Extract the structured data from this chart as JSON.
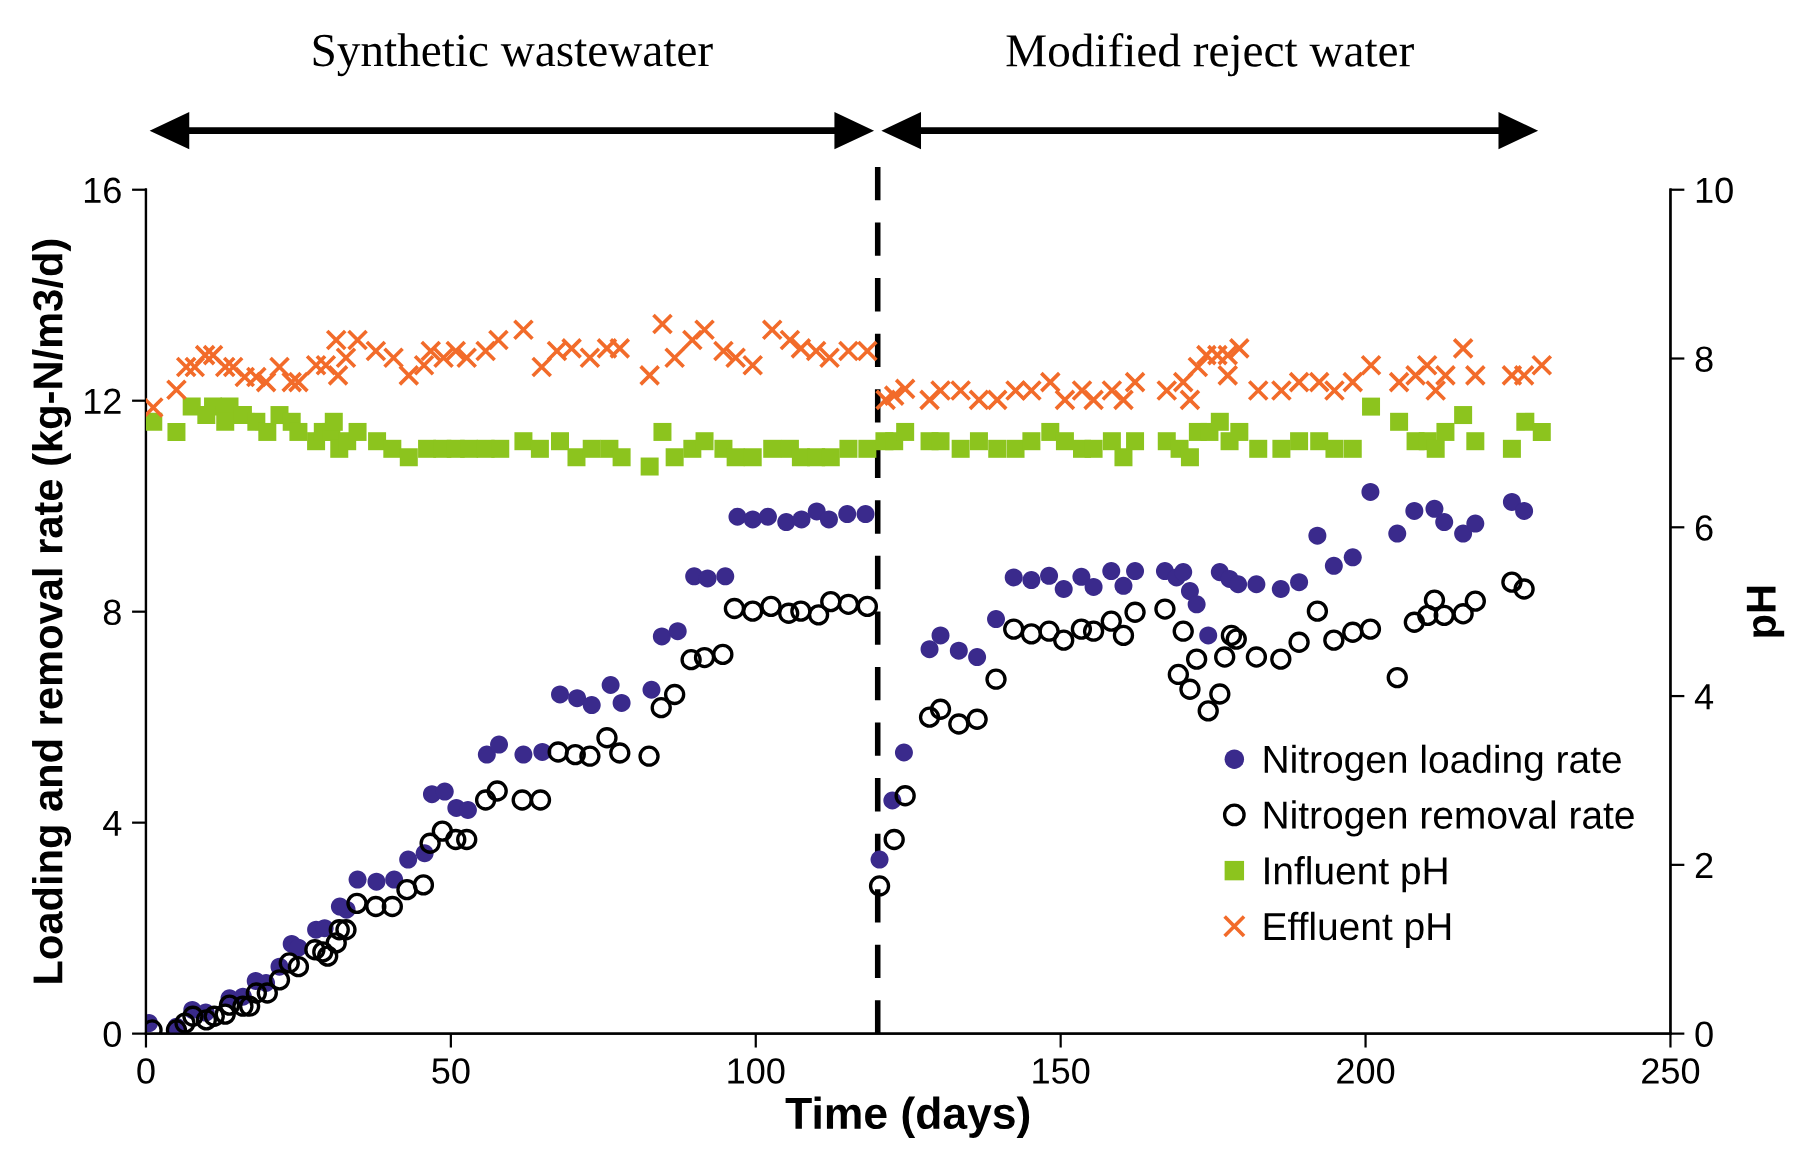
{
  "chart_data": {
    "type": "scatter",
    "xlabel": "Time (days)",
    "ylabel": "Loading and removal rate (kg-N/m3/d)",
    "y2label": "pH",
    "xlim": [
      0,
      250
    ],
    "xticks": [
      0,
      50,
      100,
      150,
      200,
      250
    ],
    "ylim": [
      0,
      16
    ],
    "yticks": [
      0,
      4,
      8,
      12,
      16
    ],
    "y2lim": [
      0,
      10
    ],
    "y2ticks": [
      0,
      2,
      4,
      6,
      8,
      10
    ],
    "grid": false,
    "legend": "bottom right",
    "ref_lines": [
      {
        "axis": "x",
        "value": 120,
        "line_style": "dashed",
        "color": "#000000"
      }
    ],
    "annotations": [
      "Synthetic wastewater",
      "Modified reject water"
    ],
    "series": [
      {
        "name": "Nitrogen loading rate",
        "color": "#3a2a8c",
        "marker": "circle",
        "x": [
          0.5,
          5,
          7.6,
          9.8,
          13.7,
          15.9,
          18,
          19.7,
          21.9,
          23.9,
          25,
          27.9,
          29.3,
          31.8,
          32.9,
          34.7,
          37.8,
          40.7,
          43,
          45.7,
          46.9,
          49,
          50.9,
          52.8,
          55.9,
          57.9,
          61.9,
          65,
          67.9,
          70.7,
          73.1,
          76.2,
          78,
          82.9,
          84.6,
          87.2,
          89.9,
          92.1,
          95,
          97,
          99.5,
          102,
          105,
          107.5,
          110,
          112,
          115,
          118,
          120.3,
          122.4,
          124.3,
          128.5,
          130.3,
          133.3,
          136.3,
          139.4,
          142.3,
          145.2,
          148.1,
          150.5,
          153.4,
          155.4,
          158.3,
          160.3,
          162.2,
          167.1,
          169,
          170.1,
          171.2,
          172.3,
          174.2,
          176.1,
          177.7,
          179.1,
          182.1,
          186.1,
          189.1,
          192.1,
          194.8,
          197.9,
          200.8,
          205.2,
          208,
          211.3,
          212.9,
          216,
          218,
          224,
          226
        ],
        "values": [
          0.2,
          0.13,
          0.45,
          0.4,
          0.67,
          0.7,
          1.0,
          0.96,
          1.27,
          1.7,
          1.63,
          1.97,
          2.0,
          2.41,
          2.35,
          2.92,
          2.88,
          2.92,
          3.3,
          3.42,
          4.54,
          4.59,
          4.28,
          4.24,
          5.29,
          5.48,
          5.29,
          5.34,
          6.43,
          6.36,
          6.23,
          6.61,
          6.27,
          6.52,
          7.53,
          7.63,
          8.67,
          8.63,
          8.67,
          9.8,
          9.75,
          9.8,
          9.7,
          9.75,
          9.9,
          9.75,
          9.85,
          9.85,
          3.3,
          4.42,
          5.33,
          7.29,
          7.55,
          7.26,
          7.14,
          7.86,
          8.65,
          8.6,
          8.68,
          8.43,
          8.66,
          8.47,
          8.77,
          8.49,
          8.77,
          8.77,
          8.65,
          8.75,
          8.39,
          8.14,
          7.55,
          8.75,
          8.62,
          8.52,
          8.52,
          8.43,
          8.56,
          9.44,
          8.87,
          9.03,
          10.27,
          9.48,
          9.91,
          9.95,
          9.7,
          9.48,
          9.67,
          10.08,
          9.91
        ]
      },
      {
        "name": "Nitrogen removal rate",
        "color": "#000000",
        "marker": "open circle",
        "x": [
          1.0,
          5.0,
          6.4,
          7.7,
          9.9,
          11.2,
          13,
          13.7,
          15.9,
          17,
          18.1,
          19.9,
          21.9,
          23.5,
          25,
          27.7,
          29,
          29.8,
          31.2,
          31.7,
          32.8,
          34.6,
          37.7,
          40.4,
          42.8,
          45.5,
          46.6,
          48.6,
          50.8,
          52.6,
          55.7,
          57.6,
          61.7,
          64.7,
          67.6,
          70.4,
          72.8,
          75.6,
          77.7,
          82.5,
          84.5,
          86.7,
          89.4,
          91.6,
          94.6,
          96.5,
          99.5,
          102.5,
          105.4,
          107.4,
          110.3,
          112.3,
          115.2,
          118.3,
          120.3,
          122.7,
          124.5,
          128.5,
          130.3,
          133.3,
          136.3,
          139.4,
          142.3,
          145.2,
          148.1,
          150.5,
          153.4,
          155.4,
          158.3,
          160.3,
          162.2,
          167.1,
          169.3,
          170.1,
          171.2,
          172.3,
          174.2,
          176.1,
          176.9,
          178,
          178.8,
          182.1,
          186.1,
          189.1,
          192.1,
          194.8,
          197.9,
          200.8,
          205.2,
          208,
          210.2,
          211.3,
          212.9,
          216,
          218,
          224,
          226
        ],
        "values": [
          0.07,
          0.07,
          0.2,
          0.33,
          0.26,
          0.33,
          0.37,
          0.54,
          0.52,
          0.52,
          0.77,
          0.77,
          1.02,
          1.34,
          1.27,
          1.59,
          1.55,
          1.47,
          1.72,
          1.97,
          1.97,
          2.47,
          2.41,
          2.41,
          2.73,
          2.82,
          3.61,
          3.84,
          3.68,
          3.68,
          4.43,
          4.6,
          4.43,
          4.43,
          5.34,
          5.29,
          5.26,
          5.61,
          5.32,
          5.26,
          6.18,
          6.43,
          7.09,
          7.13,
          7.19,
          8.06,
          8.01,
          8.1,
          7.97,
          8.01,
          7.94,
          8.19,
          8.14,
          8.1,
          2.8,
          3.68,
          4.51,
          6.0,
          6.15,
          5.87,
          5.96,
          6.72,
          7.67,
          7.58,
          7.63,
          7.46,
          7.67,
          7.63,
          7.82,
          7.55,
          7.99,
          8.05,
          6.81,
          7.63,
          6.53,
          7.1,
          6.12,
          6.44,
          7.14,
          7.55,
          7.48,
          7.14,
          7.1,
          7.42,
          8.01,
          7.46,
          7.61,
          7.67,
          6.75,
          7.8,
          7.93,
          8.22,
          7.93,
          7.96,
          8.2,
          8.56,
          8.43
        ]
      },
      {
        "name": "Influent pH",
        "color": "#8cc41e",
        "marker": "square",
        "axis": "y2",
        "x": [
          1.2,
          5,
          7.5,
          11,
          13.7,
          9.9,
          13,
          15.9,
          18.1,
          19.9,
          21.9,
          23.9,
          25,
          27.9,
          29,
          30.4,
          30.8,
          31.7,
          33,
          34.7,
          37.9,
          40.4,
          43.1,
          46.1,
          48.6,
          50.8,
          53,
          55.7,
          58.1,
          61.9,
          64.6,
          67.9,
          70.6,
          73.1,
          76,
          78,
          82.6,
          84.7,
          86.7,
          89.6,
          91.6,
          94.7,
          96.7,
          99.5,
          102.7,
          105.6,
          107.4,
          109.9,
          112.3,
          115.2,
          118.3,
          121.1,
          122.7,
          124.5,
          128.5,
          130.3,
          133.6,
          136.6,
          139.6,
          142.6,
          145.2,
          148.3,
          150.7,
          153.5,
          155.4,
          158.4,
          160.3,
          162.2,
          167.4,
          169.5,
          171.2,
          172.5,
          174.4,
          176.1,
          177.7,
          179.3,
          182.4,
          186.2,
          189.1,
          192.4,
          194.9,
          197.9,
          200.9,
          205.5,
          208.2,
          210.2,
          211.5,
          213.1,
          216,
          218,
          224,
          226.2,
          228.9
        ],
        "values": [
          7.25,
          7.13,
          7.43,
          7.43,
          7.43,
          7.33,
          7.25,
          7.33,
          7.25,
          7.13,
          7.33,
          7.25,
          7.13,
          7.02,
          7.13,
          7.13,
          7.25,
          6.93,
          7.02,
          7.13,
          7.02,
          6.93,
          6.83,
          6.93,
          6.93,
          6.93,
          6.93,
          6.93,
          6.93,
          7.02,
          6.93,
          7.02,
          6.83,
          6.93,
          6.93,
          6.83,
          6.72,
          7.13,
          6.83,
          6.93,
          7.02,
          6.93,
          6.83,
          6.83,
          6.93,
          6.93,
          6.83,
          6.83,
          6.83,
          6.93,
          6.93,
          7.02,
          7.02,
          7.13,
          7.02,
          7.02,
          6.93,
          7.02,
          6.93,
          6.93,
          7.02,
          7.13,
          7.02,
          6.93,
          6.93,
          7.02,
          6.83,
          7.02,
          7.02,
          6.93,
          6.83,
          7.13,
          7.13,
          7.25,
          7.02,
          7.13,
          6.93,
          6.93,
          7.02,
          7.02,
          6.93,
          6.93,
          7.43,
          7.25,
          7.02,
          7.02,
          6.93,
          7.13,
          7.33,
          7.02,
          6.93,
          7.25,
          7.13
        ]
      },
      {
        "name": "Effluent pH",
        "color": "#f26b2a",
        "marker": "cross",
        "axis": "y2",
        "x": [
          1.2,
          5.0,
          6.6,
          8.0,
          9.7,
          11,
          13,
          14.3,
          16.2,
          18.1,
          19.7,
          21.9,
          23.9,
          25,
          27.9,
          29.5,
          31.2,
          31.5,
          32.8,
          34.7,
          37.7,
          40.6,
          43.1,
          45.6,
          46.7,
          48.8,
          50.8,
          52.6,
          55.7,
          57.8,
          61.9,
          64.9,
          67.4,
          69.8,
          72.8,
          75.6,
          77.7,
          82.6,
          84.7,
          86.7,
          89.6,
          91.6,
          94.7,
          96.7,
          99.5,
          102.7,
          105.6,
          107.4,
          109.9,
          112.1,
          115.2,
          118.3,
          121.3,
          122.7,
          124.5,
          128.5,
          130.3,
          133.6,
          136.6,
          139.6,
          142.6,
          145.2,
          148.3,
          150.7,
          153.5,
          155.4,
          158.4,
          160.3,
          162.2,
          167.4,
          170.1,
          171.2,
          172.5,
          173.9,
          175.7,
          177.4,
          177.4,
          179.3,
          182.4,
          186.2,
          189.1,
          192.4,
          194.9,
          197.9,
          200.9,
          205.5,
          208.2,
          210.1,
          211.5,
          213.1,
          216,
          218,
          224,
          226,
          228.9
        ],
        "values": [
          7.42,
          7.63,
          7.9,
          7.9,
          8.04,
          8.04,
          7.9,
          7.9,
          7.78,
          7.78,
          7.72,
          7.9,
          7.72,
          7.72,
          7.92,
          7.92,
          8.22,
          7.8,
          8.01,
          8.22,
          8.09,
          8.01,
          7.8,
          7.92,
          8.09,
          8.01,
          8.09,
          8.01,
          8.09,
          8.22,
          8.34,
          7.9,
          8.09,
          8.12,
          8.01,
          8.12,
          8.12,
          7.8,
          8.41,
          8.01,
          8.22,
          8.34,
          8.09,
          8.01,
          7.92,
          8.34,
          8.22,
          8.12,
          8.09,
          8.01,
          8.09,
          8.09,
          7.51,
          7.56,
          7.64,
          7.51,
          7.62,
          7.62,
          7.51,
          7.51,
          7.62,
          7.62,
          7.72,
          7.51,
          7.62,
          7.51,
          7.62,
          7.51,
          7.72,
          7.62,
          7.72,
          7.51,
          7.9,
          8.04,
          8.04,
          8.04,
          7.8,
          8.12,
          7.62,
          7.62,
          7.72,
          7.72,
          7.62,
          7.72,
          7.92,
          7.72,
          7.8,
          7.92,
          7.62,
          7.8,
          8.12,
          7.8,
          7.8,
          7.8,
          7.92
        ]
      }
    ]
  }
}
